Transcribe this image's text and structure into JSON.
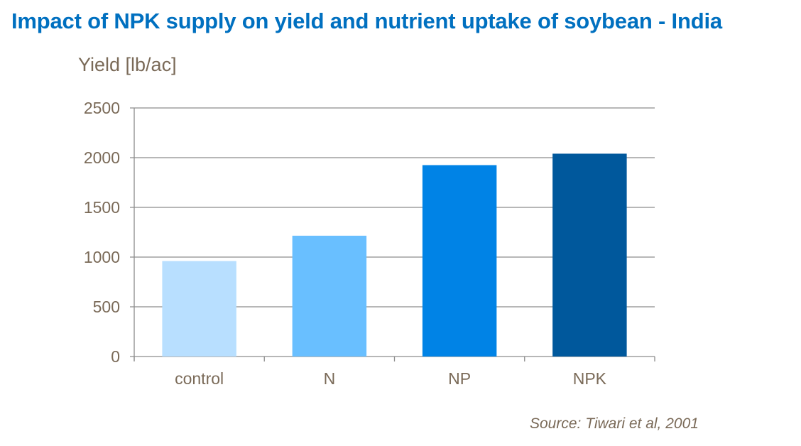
{
  "chart_data": {
    "type": "bar",
    "title": "Impact of NPK supply on yield and nutrient uptake of soybean - India",
    "ylabel": "Yield [lb/ac]",
    "xlabel": "",
    "categories": [
      "control",
      "N",
      "NP",
      "NPK"
    ],
    "values": [
      960,
      1215,
      1925,
      2040
    ],
    "colors": [
      "#b8dfff",
      "#69bfff",
      "#0083e6",
      "#00589c"
    ],
    "ylim": [
      0,
      2500
    ],
    "yticks": [
      0,
      500,
      1000,
      1500,
      2000,
      2500
    ],
    "grid": true,
    "source": "Source: Tiwari et al, 2001"
  }
}
